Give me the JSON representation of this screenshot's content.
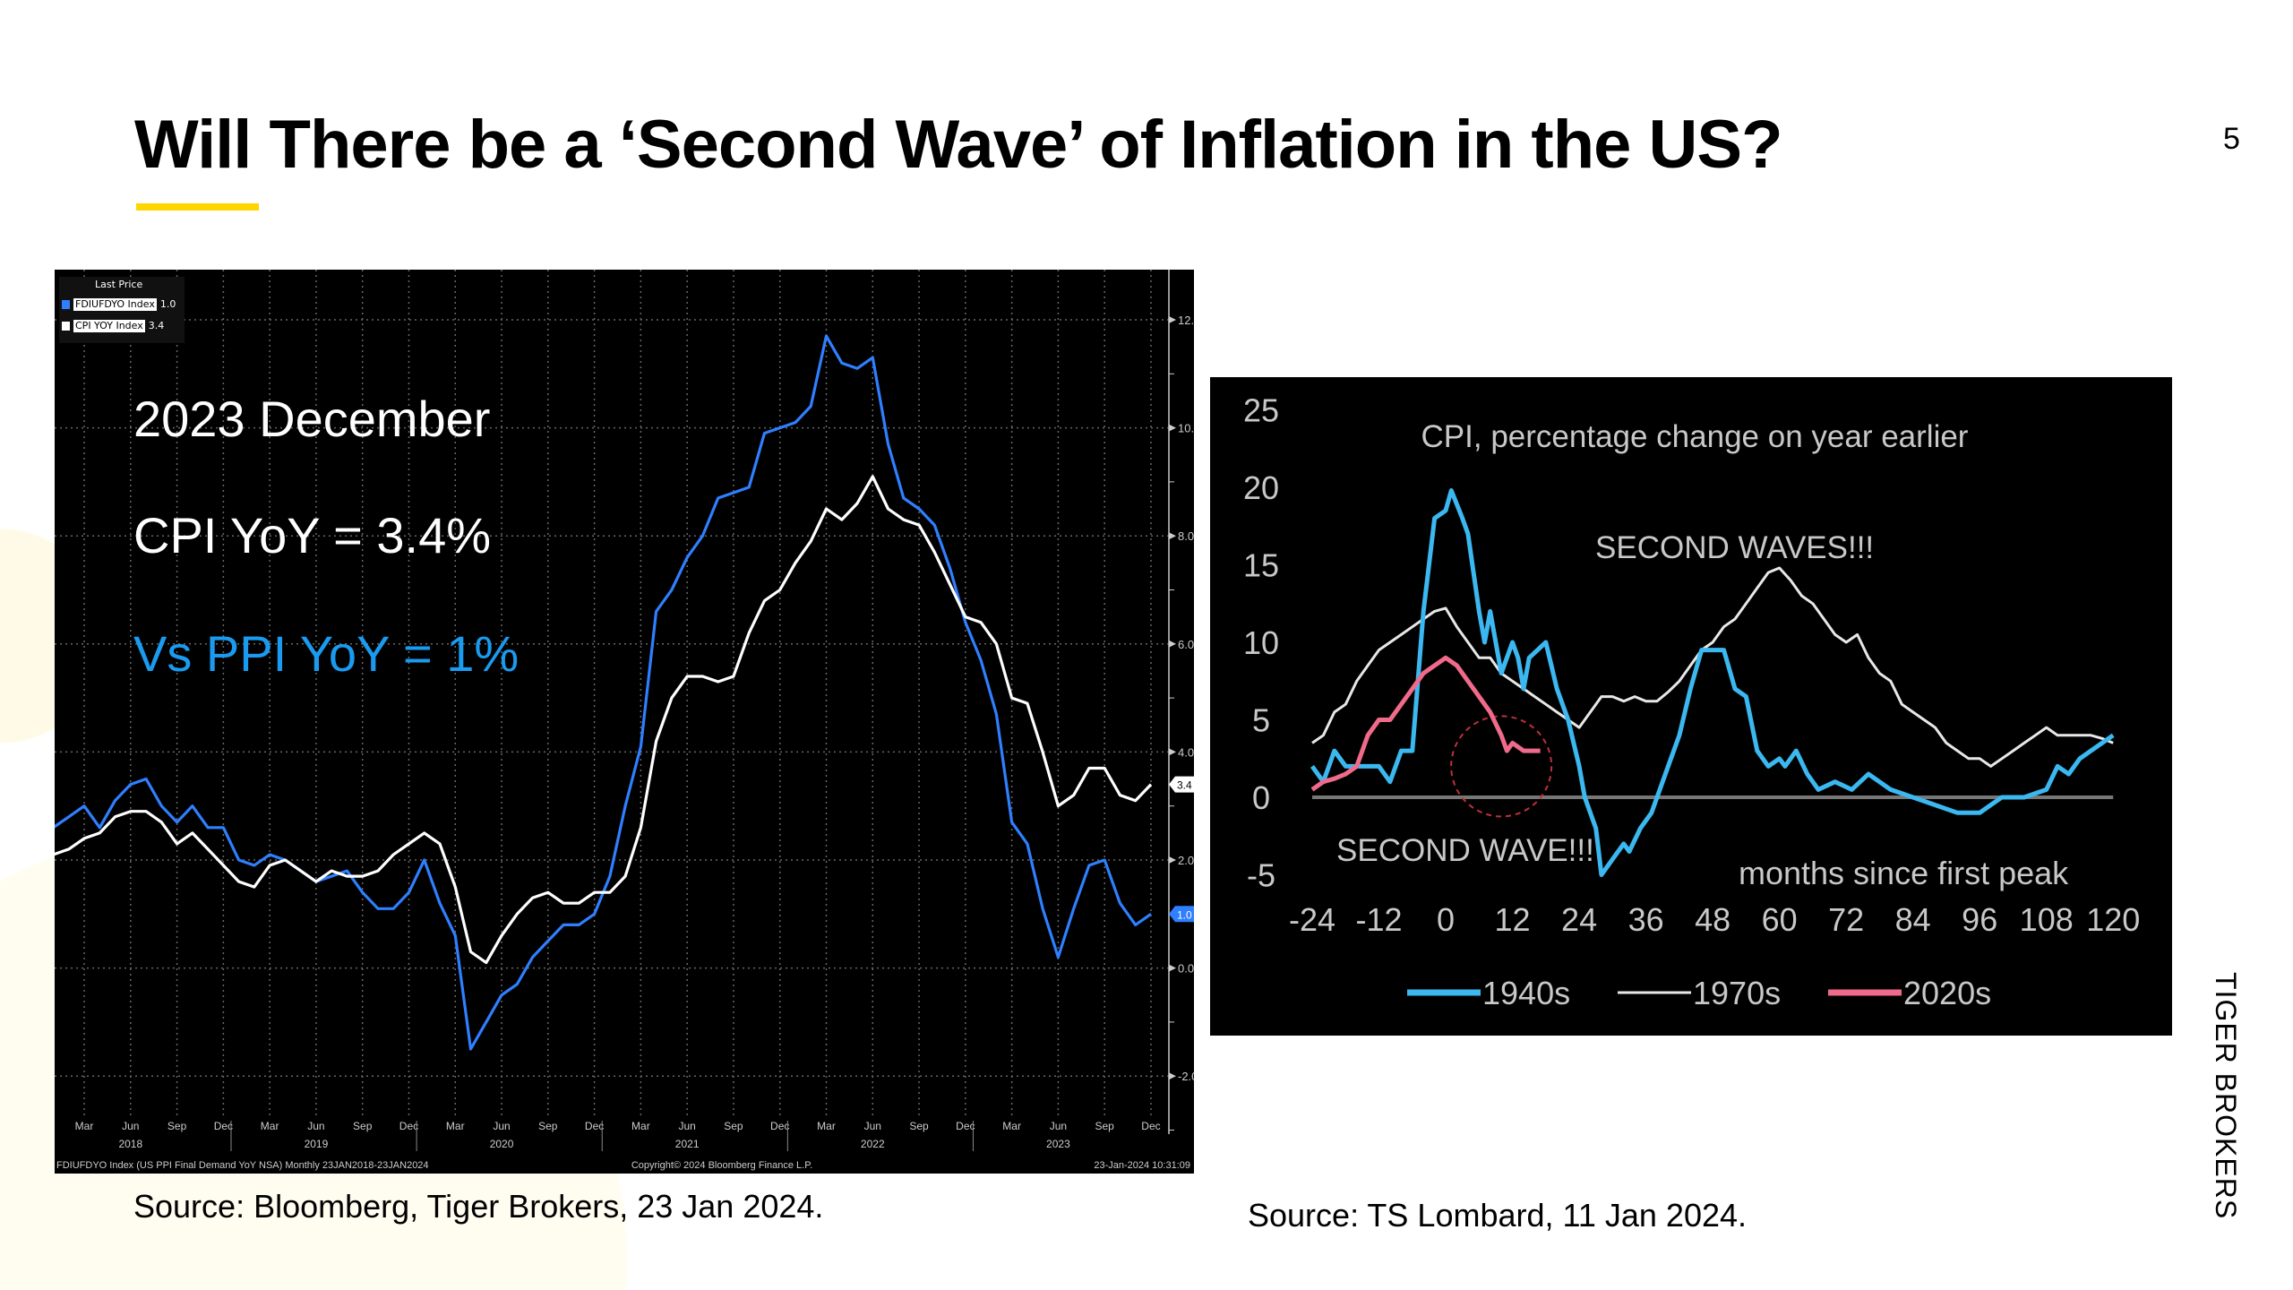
{
  "slide": {
    "title": "Will There be a ‘Second Wave’ of Inflation in the US?",
    "page_number": "5",
    "brand": "TIGER BROKERS",
    "accent_color": "#ffd500"
  },
  "left_panel": {
    "overlay": {
      "line1": "2023 December",
      "line2": "CPI YoY = 3.4%",
      "line3": "Vs PPI YoY = 1%",
      "line3_color": "#1a9bf0"
    },
    "legend": {
      "header": "Last Price",
      "items": [
        {
          "label": "FDIUFDYO Index",
          "value": "1.0",
          "color": "#2f7fff"
        },
        {
          "label": "CPI YOY Index",
          "value": "3.4",
          "color": "#ffffff"
        }
      ]
    },
    "footer_left": "FDIUFDYO Index (US PPI Final Demand YoY NSA)  Monthly 23JAN2018-23JAN2024",
    "footer_center": "Copyright© 2024 Bloomberg Finance L.P.",
    "footer_right": "23-Jan-2024 10:31:09",
    "source": "Source: Bloomberg, Tiger Brokers, 23 Jan 2024."
  },
  "right_panel": {
    "source": "Source: TS Lombard, 11 Jan 2024."
  },
  "chart_data": [
    {
      "type": "line",
      "title": "",
      "x_start": "Jan 2018",
      "x_end": "Dec 2023",
      "frequency": "monthly",
      "x_tick_labels": [
        "Mar",
        "Jun",
        "Sep",
        "Dec",
        "Mar",
        "Jun",
        "Sep",
        "Dec",
        "Mar",
        "Jun",
        "Sep",
        "Dec",
        "Mar",
        "Jun",
        "Sep",
        "Dec",
        "Mar",
        "Jun",
        "Sep",
        "Dec",
        "Mar",
        "Jun",
        "Sep",
        "Dec"
      ],
      "year_labels": [
        "2018",
        "2019",
        "2020",
        "2021",
        "2022",
        "2023"
      ],
      "y_ticks": [
        "12.0",
        "10.0",
        "8.0",
        "6.0",
        "4.0",
        "2.0",
        "0.0",
        "-2.0"
      ],
      "ylim": [
        -2.8,
        12.9
      ],
      "y_axis_side": "right",
      "grid": true,
      "legend_position": "top-left",
      "last_value_tags": [
        {
          "value": "3.4",
          "series": "CPI YOY Index"
        },
        {
          "value": "1.0",
          "series": "FDIUFDYO Index"
        }
      ],
      "series": [
        {
          "name": "FDIUFDYO Index",
          "color": "#2f7fff",
          "values": [
            2.6,
            2.8,
            3.0,
            2.6,
            3.1,
            3.4,
            3.5,
            3.0,
            2.7,
            3.0,
            2.6,
            2.6,
            2.0,
            1.9,
            2.1,
            2.0,
            1.8,
            1.6,
            1.7,
            1.8,
            1.4,
            1.1,
            1.1,
            1.4,
            2.0,
            1.2,
            0.6,
            -1.5,
            -1.0,
            -0.5,
            -0.3,
            0.2,
            0.5,
            0.8,
            0.8,
            1.0,
            1.7,
            3.0,
            4.1,
            6.6,
            7.0,
            7.6,
            8.0,
            8.7,
            8.8,
            8.9,
            9.9,
            10.0,
            10.1,
            10.4,
            11.7,
            11.2,
            11.1,
            11.3,
            9.7,
            8.7,
            8.5,
            8.2,
            7.4,
            6.4,
            5.7,
            4.7,
            2.7,
            2.3,
            1.1,
            0.2,
            1.1,
            1.9,
            2.0,
            1.2,
            0.8,
            1.0
          ]
        },
        {
          "name": "CPI YOY Index",
          "color": "#ffffff",
          "values": [
            2.1,
            2.2,
            2.4,
            2.5,
            2.8,
            2.9,
            2.9,
            2.7,
            2.3,
            2.5,
            2.2,
            1.9,
            1.6,
            1.5,
            1.9,
            2.0,
            1.8,
            1.6,
            1.8,
            1.7,
            1.7,
            1.8,
            2.1,
            2.3,
            2.5,
            2.3,
            1.5,
            0.3,
            0.1,
            0.6,
            1.0,
            1.3,
            1.4,
            1.2,
            1.2,
            1.4,
            1.4,
            1.7,
            2.6,
            4.2,
            5.0,
            5.4,
            5.4,
            5.3,
            5.4,
            6.2,
            6.8,
            7.0,
            7.5,
            7.9,
            8.5,
            8.3,
            8.6,
            9.1,
            8.5,
            8.3,
            8.2,
            7.7,
            7.1,
            6.5,
            6.4,
            6.0,
            5.0,
            4.9,
            4.0,
            3.0,
            3.2,
            3.7,
            3.7,
            3.2,
            3.1,
            3.4
          ]
        }
      ]
    },
    {
      "type": "line",
      "title": "CPI, percentage change on year earlier",
      "xlabel": "months since first peak",
      "annotations": [
        "SECOND WAVES!!!",
        "SECOND WAVE!!!"
      ],
      "x_ticks": [
        "-24",
        "-12",
        "0",
        "12",
        "24",
        "36",
        "48",
        "60",
        "72",
        "84",
        "96",
        "108",
        "120"
      ],
      "y_ticks": [
        "25",
        "20",
        "15",
        "10",
        "5",
        "0",
        "-5"
      ],
      "xlim": [
        -24,
        120
      ],
      "ylim": [
        -5,
        25
      ],
      "grid": false,
      "legend_position": "bottom",
      "series": [
        {
          "name": "1940s",
          "color": "#3bb8f0",
          "x": [
            -24,
            -22,
            -20,
            -18,
            -12,
            -10,
            -8,
            -6,
            -4,
            -2,
            0,
            1,
            3,
            4,
            6,
            7,
            8,
            10,
            12,
            13,
            14,
            15,
            18,
            20,
            22,
            24,
            25,
            27,
            28,
            30,
            32,
            33,
            35,
            37,
            40,
            42,
            44,
            46,
            48,
            50,
            52,
            54,
            56,
            58,
            60,
            61,
            63,
            65,
            67,
            70,
            73,
            76,
            80,
            84,
            88,
            92,
            96,
            98,
            100,
            104,
            108,
            110,
            112,
            114,
            116,
            120
          ],
          "y": [
            2,
            1,
            3,
            2,
            2,
            1,
            3,
            3,
            12,
            18,
            18.5,
            19.8,
            18,
            17,
            12,
            10,
            12,
            8,
            10,
            9,
            7,
            9,
            10,
            7,
            5,
            2,
            0,
            -2,
            -5,
            -4,
            -3,
            -3.5,
            -2,
            -1,
            2,
            4,
            7,
            9.5,
            9.5,
            9.5,
            7,
            6.5,
            3,
            2,
            2.5,
            2,
            3,
            1.5,
            0.5,
            1,
            0.5,
            1.5,
            0.5,
            0,
            -0.5,
            -1,
            -1,
            -0.5,
            0,
            0,
            0.5,
            2,
            1.5,
            2.5,
            3,
            4
          ]
        },
        {
          "name": "1970s",
          "color": "#e8e8e8",
          "x": [
            -24,
            -22,
            -20,
            -18,
            -16,
            -14,
            -12,
            -10,
            -8,
            -6,
            -4,
            -2,
            0,
            2,
            4,
            6,
            8,
            10,
            12,
            14,
            16,
            18,
            20,
            22,
            24,
            26,
            28,
            30,
            32,
            34,
            36,
            38,
            40,
            42,
            44,
            46,
            48,
            50,
            52,
            54,
            56,
            58,
            60,
            62,
            64,
            66,
            68,
            70,
            72,
            74,
            76,
            78,
            80,
            82,
            84,
            86,
            88,
            90,
            92,
            94,
            96,
            98,
            100,
            102,
            104,
            106,
            108,
            110,
            112,
            114,
            116,
            118,
            120
          ],
          "y": [
            3.5,
            4,
            5.5,
            6,
            7.5,
            8.5,
            9.5,
            10,
            10.5,
            11,
            11.5,
            12,
            12.2,
            11,
            10,
            9,
            9,
            8,
            7.5,
            7,
            6.5,
            6,
            5.5,
            5,
            4.5,
            5.5,
            6.5,
            6.5,
            6.2,
            6.5,
            6.2,
            6.2,
            6.8,
            7.5,
            8.5,
            9.5,
            10,
            11,
            11.5,
            12.5,
            13.5,
            14.5,
            14.8,
            14,
            13,
            12.5,
            11.5,
            10.5,
            10,
            10.5,
            9,
            8,
            7.5,
            6,
            5.5,
            5,
            4.5,
            3.5,
            3,
            2.5,
            2.5,
            2,
            2.5,
            3,
            3.5,
            4,
            4.5,
            4,
            4,
            4,
            4,
            3.8,
            3.5
          ]
        },
        {
          "name": "2020s",
          "color": "#f06a8a",
          "x": [
            -24,
            -22,
            -20,
            -18,
            -16,
            -14,
            -12,
            -10,
            -8,
            -6,
            -4,
            -2,
            0,
            2,
            4,
            6,
            8,
            10,
            11,
            12,
            14,
            17
          ],
          "y": [
            0.5,
            1,
            1.2,
            1.5,
            2,
            4,
            5,
            5,
            6,
            7,
            8,
            8.5,
            9,
            8.5,
            7.5,
            6.5,
            5.5,
            4,
            3,
            3.5,
            3,
            3
          ]
        }
      ]
    }
  ]
}
